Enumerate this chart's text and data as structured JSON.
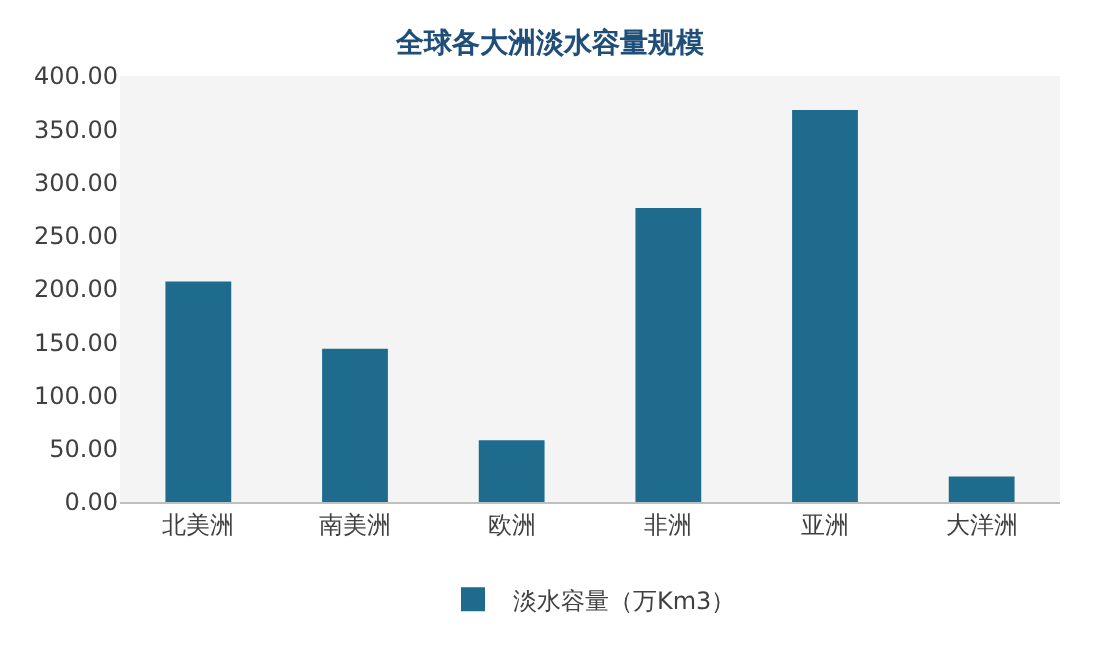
{
  "chart_data": {
    "type": "bar",
    "title": "全球各大洲淡水容量规模",
    "categories": [
      "北美洲",
      "南美洲",
      "欧洲",
      "非洲",
      "亚洲",
      "大洋洲"
    ],
    "series": [
      {
        "name": "淡水容量（万Km3）",
        "color": "#1f6b8e",
        "values": [
          207,
          144,
          58,
          276,
          368,
          24
        ]
      }
    ],
    "ylim": [
      0,
      400
    ],
    "yticks": [
      {
        "value": 0,
        "label": "0.00"
      },
      {
        "value": 50,
        "label": "50.00"
      },
      {
        "value": 100,
        "label": "100.00"
      },
      {
        "value": 150,
        "label": "150.00"
      },
      {
        "value": 200,
        "label": "200.00"
      },
      {
        "value": 250,
        "label": "250.00"
      },
      {
        "value": 300,
        "label": "300.00"
      },
      {
        "value": 350,
        "label": "350.00"
      },
      {
        "value": 400,
        "label": "400.00"
      }
    ],
    "grid": false,
    "legend": "bottom"
  }
}
